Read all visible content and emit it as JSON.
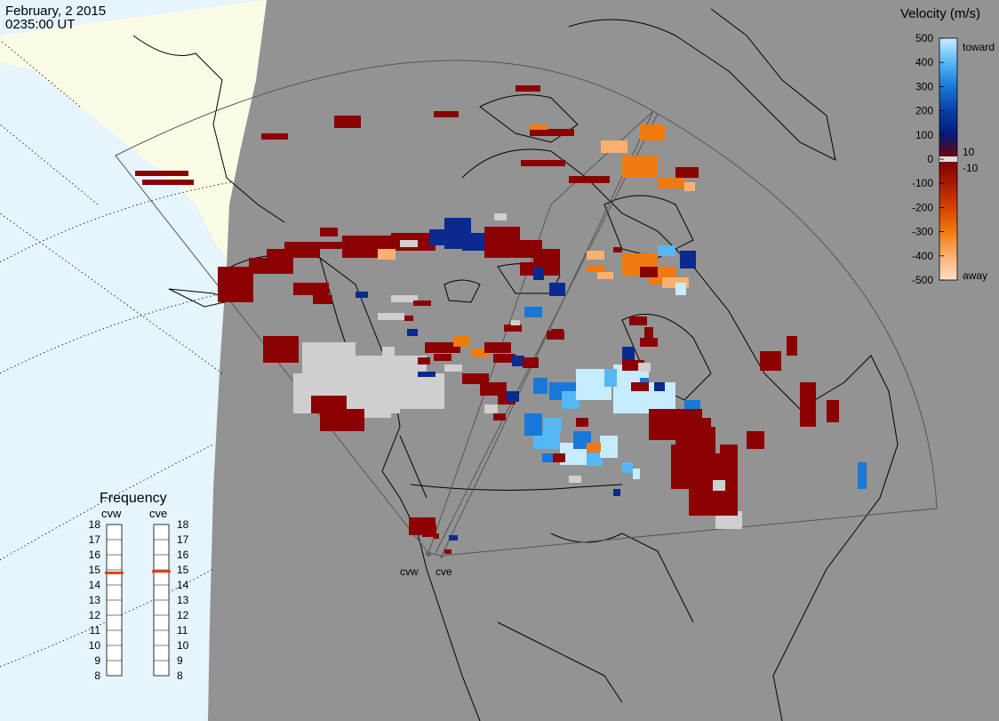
{
  "header": {
    "date": "February, 2 2015",
    "time": "0235:00 UT"
  },
  "colors": {
    "land": "#939393",
    "sunlit": "#fcfce6",
    "ocean_day": "#e6f4fc",
    "ground_scatter": "#cfcfcf",
    "coast": "#000000"
  },
  "legend": {
    "title": "Velocity (m/s)",
    "ticks": [
      "500",
      "400",
      "300",
      "200",
      "100",
      "0",
      "-100",
      "-200",
      "-300",
      "-400",
      "-500"
    ],
    "extra_ticks": [
      "10",
      "-10"
    ],
    "toward_label": "toward",
    "away_label": "away",
    "gradient": [
      "#c8ecff",
      "#55b8f4",
      "#1878d8",
      "#0a3ea8",
      "#041a7a",
      "#7a0000",
      "#a81a00",
      "#d84000",
      "#f07a10",
      "#fcb070",
      "#fde0c8"
    ]
  },
  "frequency": {
    "title": "Frequency",
    "radars": [
      {
        "name": "cvw",
        "value_mhz": 14.8
      },
      {
        "name": "cve",
        "value_mhz": 14.9
      }
    ],
    "scale_left": [
      "18",
      "17",
      "16",
      "15",
      "14",
      "13",
      "12",
      "11",
      "10",
      "9",
      "8"
    ],
    "scale_right": [
      "18",
      "17",
      "16",
      "15",
      "14",
      "13",
      "12",
      "11",
      "10",
      "9",
      "8"
    ],
    "indicator_color": "#e04010"
  },
  "stations": [
    {
      "name": "cvw"
    },
    {
      "name": "cve"
    }
  ]
}
